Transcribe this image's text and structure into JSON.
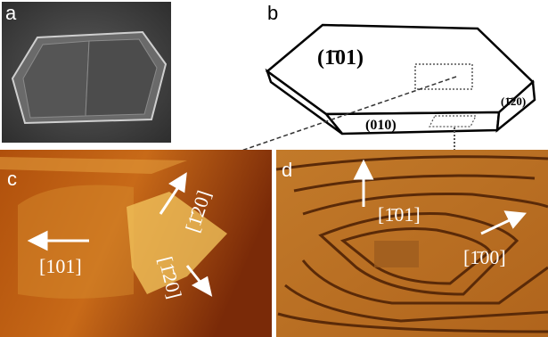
{
  "panels": [
    {
      "label": "a"
    },
    {
      "label": "b",
      "faces": [
        "(1̄01)",
        "(010)",
        "(1̄20)"
      ]
    },
    {
      "label": "c",
      "directions": [
        "[101]",
        "[1̄20]",
        "[1̄20]"
      ]
    },
    {
      "label": "d",
      "directions": [
        "[1̄01]",
        "[1̄00]"
      ]
    }
  ]
}
